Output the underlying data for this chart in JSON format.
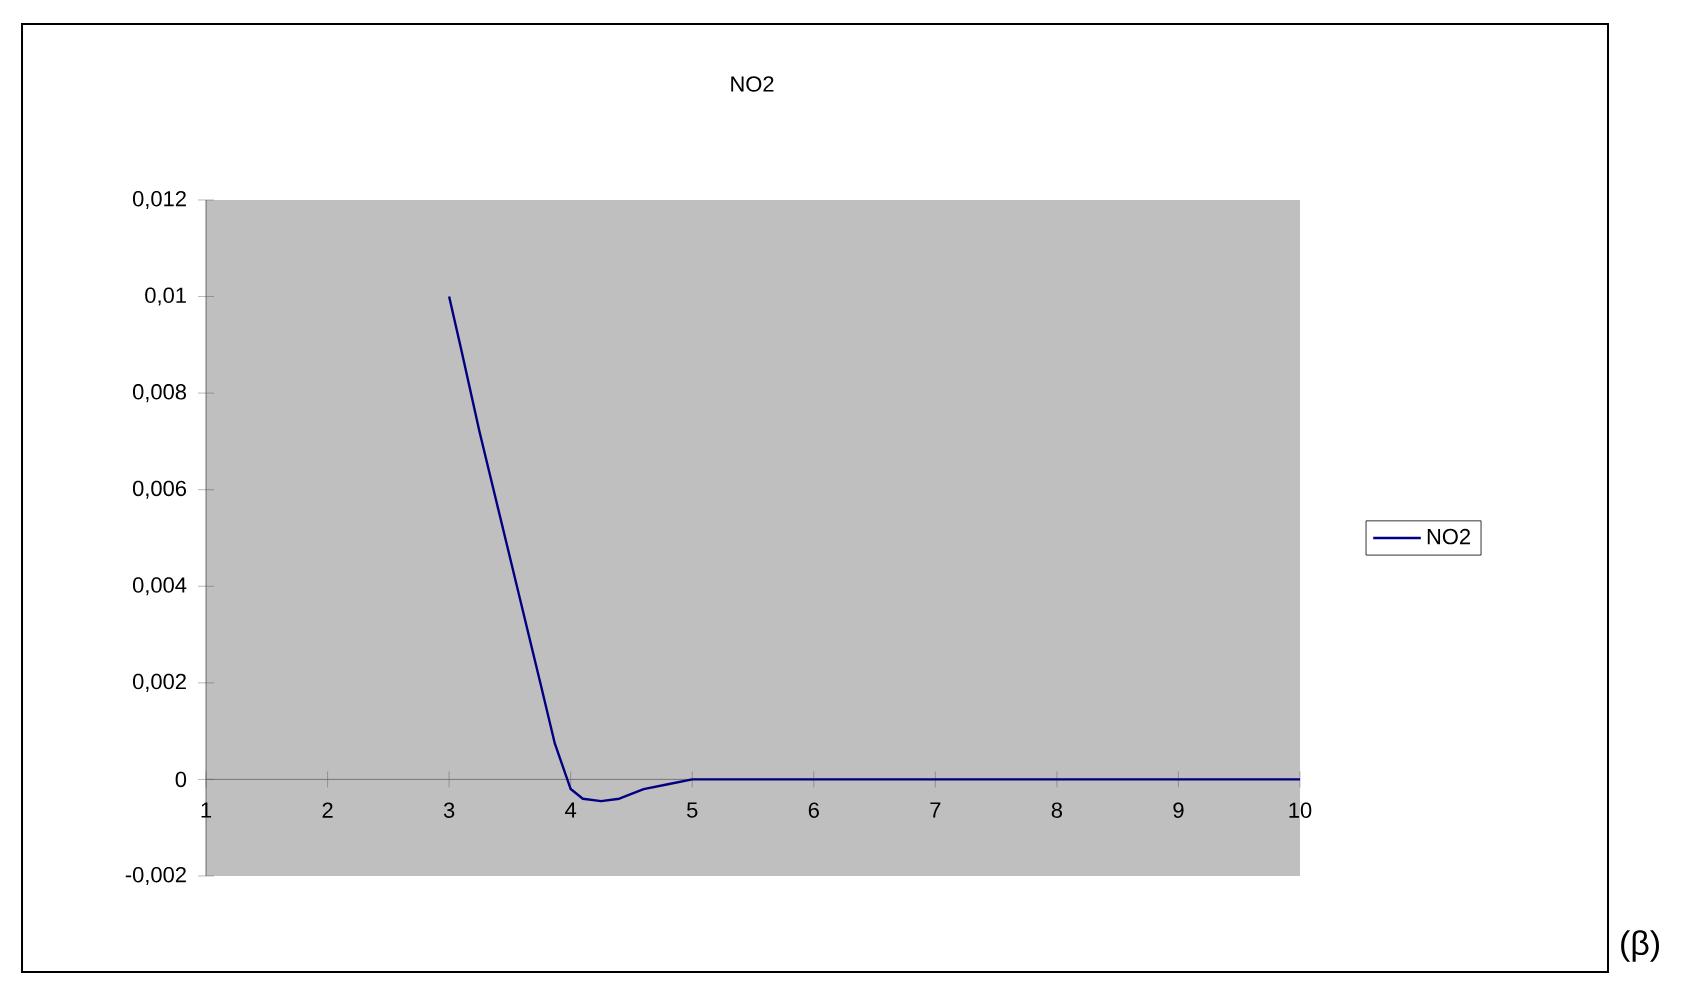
{
  "chart_data": {
    "type": "line",
    "title": "NO2",
    "annotations": [
      "(β)"
    ],
    "series": [
      {
        "name": "NO2",
        "color": "#000080",
        "x": [
          3,
          3.1,
          3.25,
          3.5,
          3.75,
          3.87,
          4.0,
          4.1,
          4.25,
          4.4,
          4.6,
          4.8,
          5,
          6,
          7,
          8,
          9,
          10
        ],
        "values": [
          0.01,
          0.0089,
          0.0072,
          0.0046,
          0.002,
          0.00074,
          -0.0002,
          -0.0004,
          -0.00045,
          -0.0004,
          -0.0002,
          -0.0001,
          0,
          0,
          0,
          0,
          0,
          0
        ]
      }
    ],
    "xlim": [
      1,
      10
    ],
    "xticks": [
      1,
      2,
      3,
      4,
      5,
      6,
      7,
      8,
      9,
      10
    ],
    "ylim": [
      -0.002,
      0.012
    ],
    "yticks": [
      {
        "value": -0.002,
        "label": "-0,002"
      },
      {
        "value": 0,
        "label": "0"
      },
      {
        "value": 0.002,
        "label": "0,002"
      },
      {
        "value": 0.004,
        "label": "0,004"
      },
      {
        "value": 0.006,
        "label": "0,006"
      },
      {
        "value": 0.008,
        "label": "0,008"
      },
      {
        "value": 0.01,
        "label": "0,01"
      },
      {
        "value": 0.012,
        "label": "0,012"
      }
    ],
    "grid": false,
    "legend": "right",
    "marker": "none",
    "line_style": "solid"
  }
}
